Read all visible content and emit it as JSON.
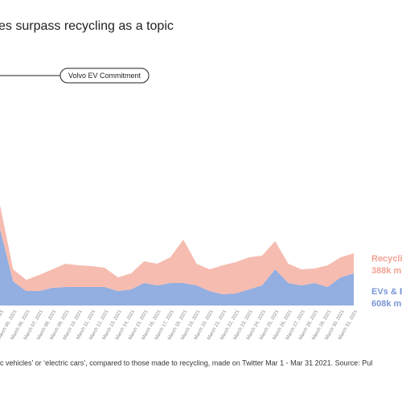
{
  "chart_data": {
    "type": "stacked_area",
    "title": "es surpass recycling as a topic",
    "annotation": "Volvo EV Commitment",
    "footnote": "ic vehicles’ or ‘electric cars’, compared to those made to recycling, made on Twitter Mar 1 - Mar 31 2021.  Source: Pul",
    "categories": [
      "March 04, 2021",
      "March 05, 2021",
      "March 06, 2021",
      "March 07, 2021",
      "March 08, 2021",
      "March 09, 2021",
      "March 10, 2021",
      "March 11, 2021",
      "March 12, 2021",
      "March 13, 2021",
      "March 14, 2021",
      "March 15, 2021",
      "March 16, 2021",
      "March 17, 2021",
      "March 18, 2021",
      "March 19, 2021",
      "March 20, 2021",
      "March 21, 2021",
      "March 22, 2021",
      "March 23, 2021",
      "March 24, 2021",
      "March 25, 2021",
      "March 26, 2021",
      "March 27, 2021",
      "March 28, 2021",
      "March 29, 2021",
      "March 30, 2021",
      "March 31, 2021"
    ],
    "ylim": [
      0,
      125
    ],
    "series": [
      {
        "name": "EVs & E",
        "total": "608k m",
        "color": "#93aee0",
        "label_color": "#7a96d6",
        "values": [
          95,
          30,
          18,
          18,
          22,
          23,
          23,
          23,
          23,
          18,
          20,
          28,
          25,
          28,
          28,
          25,
          18,
          14,
          15,
          20,
          25,
          45,
          28,
          25,
          28,
          23,
          35,
          40
        ]
      },
      {
        "name": "Recycli",
        "total": "388k m",
        "color": "#f6bcb0",
        "label_color": "#f2a191",
        "values": [
          30,
          15,
          14,
          20,
          23,
          29,
          27,
          26,
          24,
          17,
          20,
          27,
          27,
          32,
          54,
          27,
          27,
          36,
          39,
          40,
          37,
          35,
          24,
          20,
          18,
          27,
          25,
          25
        ]
      }
    ]
  }
}
